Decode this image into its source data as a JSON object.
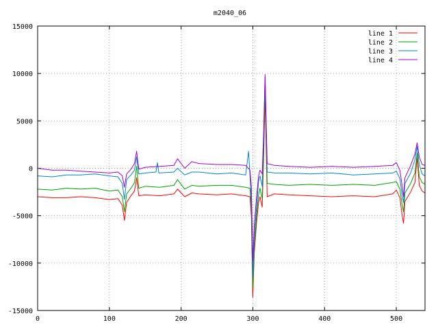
{
  "chart_data": {
    "type": "line",
    "title": "m2040_06",
    "xlabel": "",
    "ylabel": "",
    "xlim": [
      0,
      540
    ],
    "ylim": [
      -15000,
      15000
    ],
    "xticks": [
      "0",
      "100",
      "200",
      "300",
      "400",
      "500"
    ],
    "yticks": [
      "-15000",
      "-10000",
      "-5000",
      "0",
      "5000",
      "10000",
      "15000"
    ],
    "grid": true,
    "legend_position": "top-right",
    "series": [
      {
        "name": "line 1",
        "color": "#ff0000",
        "points": [
          [
            0,
            -3000
          ],
          [
            20,
            -3100
          ],
          [
            40,
            -3100
          ],
          [
            60,
            -3000
          ],
          [
            80,
            -3100
          ],
          [
            100,
            -3300
          ],
          [
            112,
            -3200
          ],
          [
            118,
            -3900
          ],
          [
            121,
            -5500
          ],
          [
            124,
            -3600
          ],
          [
            130,
            -2900
          ],
          [
            135,
            -2400
          ],
          [
            138,
            -1000
          ],
          [
            141,
            -2900
          ],
          [
            150,
            -2800
          ],
          [
            170,
            -2900
          ],
          [
            190,
            -2700
          ],
          [
            195,
            -2200
          ],
          [
            205,
            -3000
          ],
          [
            215,
            -2600
          ],
          [
            225,
            -2700
          ],
          [
            250,
            -2800
          ],
          [
            270,
            -2700
          ],
          [
            290,
            -2900
          ],
          [
            296,
            -3000
          ],
          [
            298,
            -5200
          ],
          [
            300,
            -13600
          ],
          [
            302,
            -9000
          ],
          [
            305,
            -5900
          ],
          [
            308,
            -3600
          ],
          [
            310,
            -3000
          ],
          [
            313,
            -4100
          ],
          [
            315,
            1000
          ],
          [
            317,
            7500
          ],
          [
            320,
            -3000
          ],
          [
            330,
            -2700
          ],
          [
            350,
            -2800
          ],
          [
            380,
            -2900
          ],
          [
            410,
            -3000
          ],
          [
            440,
            -2900
          ],
          [
            470,
            -3000
          ],
          [
            495,
            -2700
          ],
          [
            500,
            -2300
          ],
          [
            505,
            -3100
          ],
          [
            508,
            -4900
          ],
          [
            510,
            -5800
          ],
          [
            512,
            -3500
          ],
          [
            520,
            -2500
          ],
          [
            526,
            -1500
          ],
          [
            529,
            1200
          ],
          [
            532,
            -1800
          ],
          [
            536,
            -2400
          ],
          [
            540,
            -2600
          ]
        ]
      },
      {
        "name": "line 2",
        "color": "#00a000",
        "points": [
          [
            0,
            -2200
          ],
          [
            20,
            -2300
          ],
          [
            40,
            -2100
          ],
          [
            60,
            -2200
          ],
          [
            80,
            -2100
          ],
          [
            100,
            -2400
          ],
          [
            112,
            -2300
          ],
          [
            118,
            -3000
          ],
          [
            121,
            -4600
          ],
          [
            124,
            -2700
          ],
          [
            130,
            -2100
          ],
          [
            135,
            -1500
          ],
          [
            138,
            200
          ],
          [
            141,
            -2100
          ],
          [
            150,
            -1900
          ],
          [
            170,
            -2000
          ],
          [
            190,
            -1800
          ],
          [
            195,
            -1200
          ],
          [
            205,
            -2200
          ],
          [
            215,
            -1800
          ],
          [
            225,
            -1900
          ],
          [
            250,
            -1800
          ],
          [
            270,
            -1800
          ],
          [
            290,
            -2000
          ],
          [
            296,
            -2100
          ],
          [
            298,
            -4400
          ],
          [
            300,
            -12600
          ],
          [
            302,
            -8400
          ],
          [
            305,
            -5200
          ],
          [
            308,
            -2800
          ],
          [
            310,
            -2100
          ],
          [
            313,
            -3200
          ],
          [
            315,
            1800
          ],
          [
            317,
            8600
          ],
          [
            320,
            -1600
          ],
          [
            330,
            -1700
          ],
          [
            350,
            -1800
          ],
          [
            380,
            -1700
          ],
          [
            410,
            -1800
          ],
          [
            440,
            -1700
          ],
          [
            470,
            -1800
          ],
          [
            495,
            -1500
          ],
          [
            500,
            -1400
          ],
          [
            505,
            -2200
          ],
          [
            508,
            -3800
          ],
          [
            510,
            -4600
          ],
          [
            512,
            -2600
          ],
          [
            520,
            -1600
          ],
          [
            526,
            -500
          ],
          [
            529,
            1600
          ],
          [
            532,
            -900
          ],
          [
            536,
            -1500
          ],
          [
            540,
            -1700
          ]
        ]
      },
      {
        "name": "line 3",
        "color": "#0080d0",
        "points": [
          [
            0,
            -800
          ],
          [
            20,
            -900
          ],
          [
            40,
            -700
          ],
          [
            60,
            -700
          ],
          [
            80,
            -600
          ],
          [
            100,
            -800
          ],
          [
            112,
            -900
          ],
          [
            118,
            -1600
          ],
          [
            121,
            -3300
          ],
          [
            124,
            -1200
          ],
          [
            130,
            -700
          ],
          [
            135,
            -200
          ],
          [
            138,
            1200
          ],
          [
            141,
            -600
          ],
          [
            150,
            -500
          ],
          [
            165,
            -400
          ],
          [
            167,
            600
          ],
          [
            169,
            -500
          ],
          [
            190,
            -400
          ],
          [
            195,
            0
          ],
          [
            205,
            -700
          ],
          [
            215,
            -400
          ],
          [
            225,
            -400
          ],
          [
            250,
            -600
          ],
          [
            270,
            -500
          ],
          [
            290,
            -700
          ],
          [
            294,
            1800
          ],
          [
            296,
            -800
          ],
          [
            298,
            -3500
          ],
          [
            300,
            -11500
          ],
          [
            302,
            -7300
          ],
          [
            305,
            -4200
          ],
          [
            308,
            -1400
          ],
          [
            310,
            -800
          ],
          [
            313,
            -1900
          ],
          [
            315,
            3000
          ],
          [
            317,
            9600
          ],
          [
            320,
            -400
          ],
          [
            330,
            -500
          ],
          [
            350,
            -500
          ],
          [
            380,
            -600
          ],
          [
            410,
            -500
          ],
          [
            440,
            -700
          ],
          [
            470,
            -600
          ],
          [
            495,
            -500
          ],
          [
            500,
            -300
          ],
          [
            505,
            -1100
          ],
          [
            508,
            -2800
          ],
          [
            510,
            -3600
          ],
          [
            512,
            -1600
          ],
          [
            520,
            -500
          ],
          [
            526,
            900
          ],
          [
            529,
            2300
          ],
          [
            532,
            400
          ],
          [
            536,
            -600
          ],
          [
            540,
            -800
          ]
        ]
      },
      {
        "name": "line 4",
        "color": "#a000d0",
        "points": [
          [
            0,
            0
          ],
          [
            20,
            -200
          ],
          [
            40,
            -200
          ],
          [
            60,
            -300
          ],
          [
            80,
            -400
          ],
          [
            100,
            -500
          ],
          [
            112,
            -400
          ],
          [
            118,
            -800
          ],
          [
            121,
            -2000
          ],
          [
            124,
            -600
          ],
          [
            130,
            -100
          ],
          [
            135,
            500
          ],
          [
            138,
            1800
          ],
          [
            141,
            -100
          ],
          [
            150,
            100
          ],
          [
            170,
            200
          ],
          [
            190,
            300
          ],
          [
            195,
            1000
          ],
          [
            205,
            0
          ],
          [
            215,
            700
          ],
          [
            225,
            500
          ],
          [
            250,
            400
          ],
          [
            270,
            400
          ],
          [
            290,
            300
          ],
          [
            296,
            -200
          ],
          [
            298,
            -2000
          ],
          [
            300,
            -9800
          ],
          [
            302,
            -6000
          ],
          [
            305,
            -3200
          ],
          [
            308,
            -800
          ],
          [
            310,
            -200
          ],
          [
            313,
            -600
          ],
          [
            315,
            3800
          ],
          [
            317,
            9900
          ],
          [
            320,
            500
          ],
          [
            330,
            300
          ],
          [
            350,
            200
          ],
          [
            380,
            100
          ],
          [
            410,
            200
          ],
          [
            440,
            100
          ],
          [
            470,
            200
          ],
          [
            495,
            300
          ],
          [
            500,
            600
          ],
          [
            505,
            -200
          ],
          [
            508,
            -1800
          ],
          [
            510,
            -3000
          ],
          [
            512,
            -1000
          ],
          [
            520,
            300
          ],
          [
            526,
            1500
          ],
          [
            529,
            2700
          ],
          [
            532,
            1200
          ],
          [
            536,
            400
          ],
          [
            540,
            300
          ]
        ]
      }
    ]
  }
}
